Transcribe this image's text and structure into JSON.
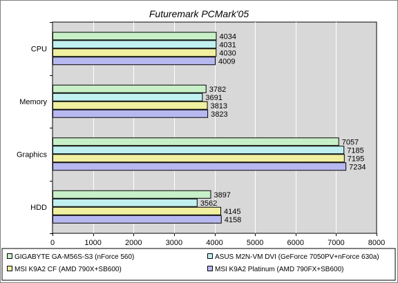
{
  "chart_data": {
    "type": "bar",
    "orientation": "horizontal",
    "title": "Futuremark PCMark'05",
    "categories": [
      "CPU",
      "Memory",
      "Graphics",
      "HDD"
    ],
    "series": [
      {
        "name": "GIGABYTE GA-M56S-S3 (nForce 560)",
        "color": "#c8f0c8",
        "values": [
          4034,
          3782,
          7057,
          3897
        ]
      },
      {
        "name": "ASUS M2N-VM DVI (GeForce 7050PV+nForce 630a)",
        "color": "#c0f0f0",
        "values": [
          4031,
          3691,
          7185,
          3562
        ]
      },
      {
        "name": "MSI K9A2 CF (AMD 790X+SB600)",
        "color": "#f0f0a0",
        "values": [
          4030,
          3813,
          7195,
          4145
        ]
      },
      {
        "name": "MSI K9A2 Platinum (AMD 790FX+SB600)",
        "color": "#b8b8f0",
        "values": [
          4009,
          3823,
          7234,
          4158
        ]
      }
    ],
    "xlim": [
      0,
      8000
    ],
    "xticks": [
      0,
      1000,
      2000,
      3000,
      4000,
      5000,
      6000,
      7000,
      8000
    ],
    "grid": true,
    "legend_position": "bottom",
    "plot_background": "#d8d8d8"
  }
}
